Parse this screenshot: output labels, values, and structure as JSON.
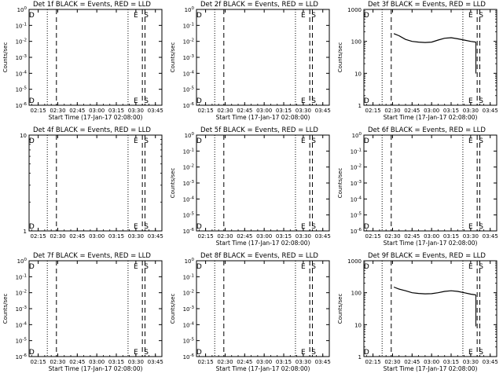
{
  "chart_data": [
    {
      "type": "line",
      "title": "Det 1f BLACK = Events, RED = LLD",
      "xlabel": "Start Time (17-Jan-17 02:08:00)",
      "ylabel": "Counts/sec",
      "xlim": [
        "02:08",
        "03:50"
      ],
      "xticks": [
        "02:15",
        "02:30",
        "02:45",
        "03:00",
        "03:15",
        "03:30",
        "03:45"
      ],
      "yscale": "log",
      "ylim": [
        1e-06,
        0.0001
      ],
      "yticks": [
        "10^-6",
        "10^-5",
        "10^-4",
        "10^-3",
        "10^-2",
        "10^-1",
        "10^0"
      ],
      "series": [],
      "vlines": [
        {
          "x": "02:22",
          "style": "dotted"
        },
        {
          "x": "02:29",
          "style": "dashed"
        },
        {
          "x": "03:24",
          "style": "dotted"
        },
        {
          "x": "03:35",
          "style": "dashed"
        },
        {
          "x": "03:37",
          "style": "dashed"
        }
      ],
      "markers": [
        {
          "label": "D",
          "x": "02:10"
        },
        {
          "label": "E",
          "x": "03:30"
        },
        {
          "label": "S",
          "x": "03:38"
        }
      ]
    },
    {
      "type": "line",
      "title": "Det 2f BLACK = Events, RED = LLD",
      "xlabel": "Start Time (17-Jan-17 02:08:00)",
      "ylabel": "Counts/sec",
      "xlim": [
        "02:08",
        "03:50"
      ],
      "xticks": [
        "02:15",
        "02:30",
        "02:45",
        "03:00",
        "03:15",
        "03:30",
        "03:45"
      ],
      "yscale": "log",
      "ylim": [
        1e-06,
        0.0001
      ],
      "yticks": [
        "10^-6",
        "10^-5",
        "10^-4",
        "10^-3",
        "10^-2",
        "10^-1",
        "10^0"
      ],
      "series": [],
      "vlines": [
        {
          "x": "02:22",
          "style": "dotted"
        },
        {
          "x": "02:29",
          "style": "dashed"
        },
        {
          "x": "03:24",
          "style": "dotted"
        },
        {
          "x": "03:35",
          "style": "dashed"
        },
        {
          "x": "03:37",
          "style": "dashed"
        }
      ],
      "markers": [
        {
          "label": "D",
          "x": "02:10"
        },
        {
          "label": "E",
          "x": "03:30"
        },
        {
          "label": "S",
          "x": "03:38"
        }
      ]
    },
    {
      "type": "line",
      "title": "Det 3f BLACK = Events, RED = LLD",
      "xlabel": "Start Time (17-Jan-17 02:08:00)",
      "ylabel": "Counts/sec",
      "xlim": [
        "02:08",
        "03:50"
      ],
      "xticks": [
        "02:15",
        "02:30",
        "02:45",
        "03:00",
        "03:15",
        "03:30",
        "03:45"
      ],
      "yscale": "log",
      "ylim": [
        1,
        1000
      ],
      "yticks": [
        "1",
        "10",
        "100",
        "1000"
      ],
      "series": [
        {
          "color": "#000000",
          "x": [
            "02:31",
            "02:35",
            "02:40",
            "02:45",
            "02:50",
            "02:55",
            "03:00",
            "03:05",
            "03:10",
            "03:15",
            "03:20",
            "03:25",
            "03:30",
            "03:34"
          ],
          "y": [
            175,
            150,
            115,
            100,
            95,
            92,
            95,
            110,
            125,
            130,
            120,
            110,
            100,
            95
          ]
        }
      ],
      "vlines": [
        {
          "x": "02:22",
          "style": "dotted"
        },
        {
          "x": "02:29",
          "style": "dashed"
        },
        {
          "x": "03:24",
          "style": "dotted"
        },
        {
          "x": "03:35",
          "style": "dashed"
        },
        {
          "x": "03:37",
          "style": "dashed"
        }
      ],
      "markers": [
        {
          "label": "D",
          "x": "02:10"
        },
        {
          "label": "E",
          "x": "03:30"
        },
        {
          "label": "S",
          "x": "03:38"
        }
      ]
    },
    {
      "type": "line",
      "title": "Det 4f BLACK = Events, RED = LLD",
      "xlabel": "",
      "ylabel": "",
      "xlim": [
        "02:08",
        "03:50"
      ],
      "xticks": [
        "02:15",
        "02:30",
        "02:45",
        "03:00",
        "03:15",
        "03:30",
        "03:45"
      ],
      "yscale": "log",
      "ylim": [
        1,
        10
      ],
      "yticks": [
        "1",
        "10"
      ],
      "series": [],
      "vlines": [
        {
          "x": "02:22",
          "style": "dotted"
        },
        {
          "x": "02:29",
          "style": "dashed"
        },
        {
          "x": "03:24",
          "style": "dotted"
        },
        {
          "x": "03:35",
          "style": "dashed"
        },
        {
          "x": "03:37",
          "style": "dashed"
        }
      ],
      "markers": [
        {
          "label": "D",
          "x": "02:10"
        },
        {
          "label": "E",
          "x": "03:30"
        },
        {
          "label": "S",
          "x": "03:38"
        }
      ]
    },
    {
      "type": "line",
      "title": "Det 5f BLACK = Events, RED = LLD",
      "xlabel": "Start Time (17-Jan-17 02:08:00)",
      "ylabel": "Counts/sec",
      "xlim": [
        "02:08",
        "03:50"
      ],
      "xticks": [
        "02:15",
        "02:30",
        "02:45",
        "03:00",
        "03:15",
        "03:30",
        "03:45"
      ],
      "yscale": "log",
      "ylim": [
        1e-06,
        0.0001
      ],
      "yticks": [
        "10^-6",
        "10^-5",
        "10^-4",
        "10^-3",
        "10^-2",
        "10^-1",
        "10^0"
      ],
      "series": [],
      "vlines": [
        {
          "x": "02:22",
          "style": "dotted"
        },
        {
          "x": "02:29",
          "style": "dashed"
        },
        {
          "x": "03:24",
          "style": "dotted"
        },
        {
          "x": "03:35",
          "style": "dashed"
        },
        {
          "x": "03:37",
          "style": "dashed"
        }
      ],
      "markers": [
        {
          "label": "D",
          "x": "02:10"
        },
        {
          "label": "E",
          "x": "03:30"
        },
        {
          "label": "S",
          "x": "03:38"
        }
      ]
    },
    {
      "type": "line",
      "title": "Det 6f BLACK = Events, RED = LLD",
      "xlabel": "Start Time (17-Jan-17 02:08:00)",
      "ylabel": "Counts/sec",
      "xlim": [
        "02:08",
        "03:50"
      ],
      "xticks": [
        "02:15",
        "02:30",
        "02:45",
        "03:00",
        "03:15",
        "03:30",
        "03:45"
      ],
      "yscale": "log",
      "ylim": [
        1e-06,
        0.0001
      ],
      "yticks": [
        "10^-6",
        "10^-5",
        "10^-4",
        "10^-3",
        "10^-2",
        "10^-1",
        "10^0"
      ],
      "series": [],
      "vlines": [
        {
          "x": "02:22",
          "style": "dotted"
        },
        {
          "x": "02:29",
          "style": "dashed"
        },
        {
          "x": "03:24",
          "style": "dotted"
        },
        {
          "x": "03:35",
          "style": "dashed"
        },
        {
          "x": "03:37",
          "style": "dashed"
        }
      ],
      "markers": [
        {
          "label": "D",
          "x": "02:10"
        },
        {
          "label": "E",
          "x": "03:30"
        },
        {
          "label": "S",
          "x": "03:38"
        }
      ]
    },
    {
      "type": "line",
      "title": "Det 7f BLACK = Events, RED = LLD",
      "xlabel": "Start Time (17-Jan-17 02:08:00)",
      "ylabel": "Counts/sec",
      "xlim": [
        "02:08",
        "03:50"
      ],
      "xticks": [
        "02:15",
        "02:30",
        "02:45",
        "03:00",
        "03:15",
        "03:30",
        "03:45"
      ],
      "yscale": "log",
      "ylim": [
        1e-06,
        0.0001
      ],
      "yticks": [
        "10^-6",
        "10^-5",
        "10^-4",
        "10^-3",
        "10^-2",
        "10^-1",
        "10^0"
      ],
      "series": [],
      "vlines": [
        {
          "x": "02:22",
          "style": "dotted"
        },
        {
          "x": "02:29",
          "style": "dashed"
        },
        {
          "x": "03:24",
          "style": "dotted"
        },
        {
          "x": "03:35",
          "style": "dashed"
        },
        {
          "x": "03:37",
          "style": "dashed"
        }
      ],
      "markers": [
        {
          "label": "D",
          "x": "02:10"
        },
        {
          "label": "E",
          "x": "03:30"
        },
        {
          "label": "S",
          "x": "03:38"
        }
      ]
    },
    {
      "type": "line",
      "title": "Det 8f BLACK = Events, RED = LLD",
      "xlabel": "Start Time (17-Jan-17 02:08:00)",
      "ylabel": "Counts/sec",
      "xlim": [
        "02:08",
        "03:50"
      ],
      "xticks": [
        "02:15",
        "02:30",
        "02:45",
        "03:00",
        "03:15",
        "03:30",
        "03:45"
      ],
      "yscale": "log",
      "ylim": [
        1e-06,
        0.0001
      ],
      "yticks": [
        "10^-6",
        "10^-5",
        "10^-4",
        "10^-3",
        "10^-2",
        "10^-1",
        "10^0"
      ],
      "series": [],
      "vlines": [
        {
          "x": "02:22",
          "style": "dotted"
        },
        {
          "x": "02:29",
          "style": "dashed"
        },
        {
          "x": "03:24",
          "style": "dotted"
        },
        {
          "x": "03:35",
          "style": "dashed"
        },
        {
          "x": "03:37",
          "style": "dashed"
        }
      ],
      "markers": [
        {
          "label": "D",
          "x": "02:10"
        },
        {
          "label": "E",
          "x": "03:30"
        },
        {
          "label": "S",
          "x": "03:38"
        }
      ]
    },
    {
      "type": "line",
      "title": "Det 9f BLACK = Events, RED = LLD",
      "xlabel": "Start Time (17-Jan-17 02:08:00)",
      "ylabel": "Counts/sec",
      "xlim": [
        "02:08",
        "03:50"
      ],
      "xticks": [
        "02:15",
        "02:30",
        "02:45",
        "03:00",
        "03:15",
        "03:30",
        "03:45"
      ],
      "yscale": "log",
      "ylim": [
        1,
        1000
      ],
      "yticks": [
        "1",
        "10",
        "100",
        "1000"
      ],
      "series": [
        {
          "color": "#000000",
          "x": [
            "02:31",
            "02:35",
            "02:40",
            "02:45",
            "02:50",
            "02:55",
            "03:00",
            "03:05",
            "03:10",
            "03:15",
            "03:20",
            "03:25",
            "03:30",
            "03:34"
          ],
          "y": [
            150,
            130,
            115,
            100,
            95,
            92,
            93,
            100,
            110,
            115,
            110,
            100,
            90,
            85
          ]
        }
      ],
      "vlines": [
        {
          "x": "02:22",
          "style": "dotted"
        },
        {
          "x": "02:29",
          "style": "dashed"
        },
        {
          "x": "03:24",
          "style": "dotted"
        },
        {
          "x": "03:35",
          "style": "dashed"
        },
        {
          "x": "03:37",
          "style": "dashed"
        }
      ],
      "markers": [
        {
          "label": "D",
          "x": "02:10"
        },
        {
          "label": "E",
          "x": "03:30"
        },
        {
          "label": "S",
          "x": "03:38"
        }
      ]
    }
  ]
}
